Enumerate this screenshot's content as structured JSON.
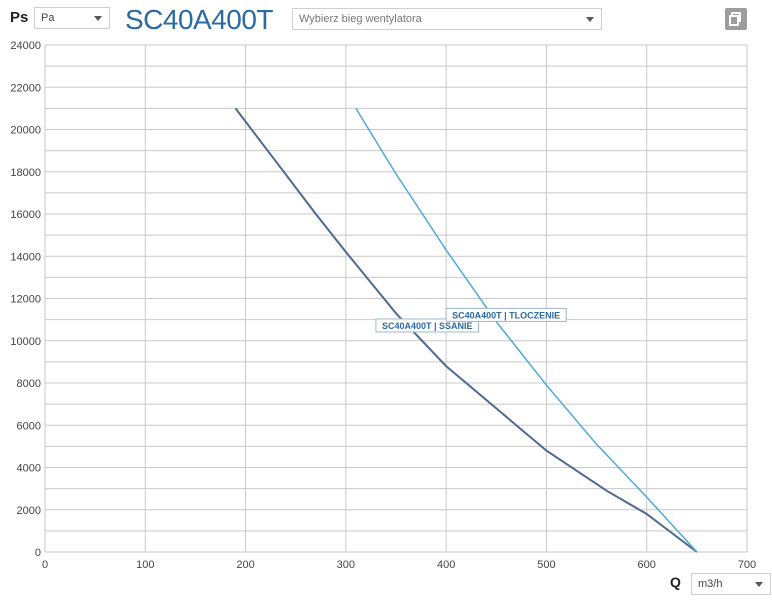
{
  "header": {
    "ps_label": "Ps",
    "pressure_unit": "Pa",
    "model_title": "SC40A400T",
    "fan_speed_placeholder": "Wybierz bieg wentylatora"
  },
  "footer": {
    "q_label": "Q",
    "flow_unit": "m3/h"
  },
  "colors": {
    "grid": "#c9c9c9",
    "ssanie": "#4e6a8e",
    "tloczenie": "#52a8d8",
    "title": "#2b6aa3"
  },
  "chart_data": {
    "type": "line",
    "title": "SC40A400T",
    "xlabel": "Q",
    "ylabel": "Ps",
    "xlim": [
      0,
      700
    ],
    "ylim": [
      0,
      24000
    ],
    "x_ticks": [
      0,
      100,
      200,
      300,
      400,
      500,
      600,
      700
    ],
    "y_ticks": [
      0,
      2000,
      4000,
      6000,
      8000,
      10000,
      12000,
      14000,
      16000,
      18000,
      20000,
      22000,
      24000
    ],
    "grid": true,
    "series": [
      {
        "name": "SC40A400T | SSANIE",
        "x": [
          190,
          230,
          270,
          300,
          350,
          400,
          450,
          500,
          560,
          600,
          650
        ],
        "y": [
          21000,
          18500,
          16000,
          14200,
          11300,
          8800,
          6800,
          4800,
          2900,
          1800,
          0
        ]
      },
      {
        "name": "SC40A400T | TLOCZENIE",
        "x": [
          310,
          350,
          400,
          450,
          500,
          550,
          600,
          650
        ],
        "y": [
          21000,
          17900,
          14300,
          10900,
          7900,
          5100,
          2600,
          0
        ]
      }
    ]
  }
}
